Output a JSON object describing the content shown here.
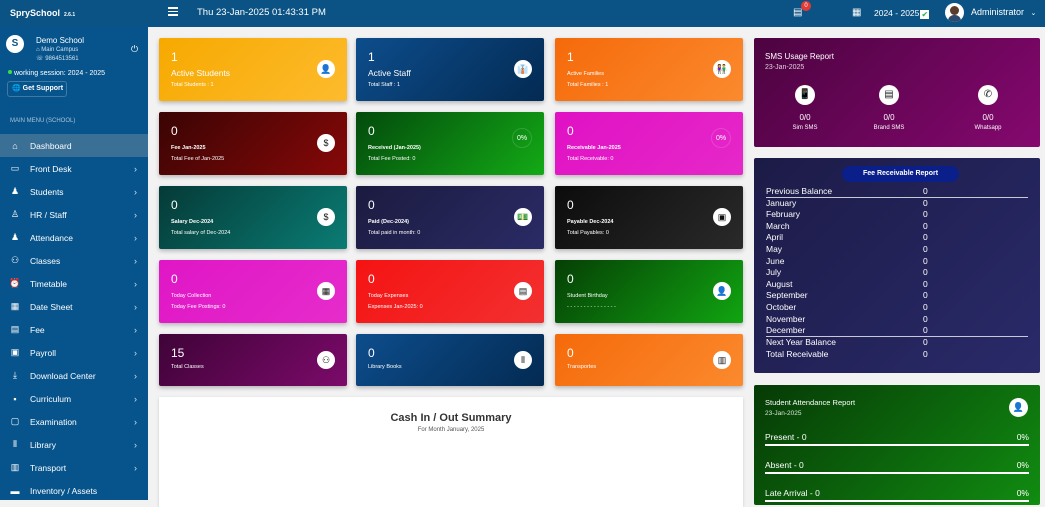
{
  "header": {
    "brand": "SprySchool",
    "version": "2.6.1",
    "datetime": "Thu 23-Jan-2025 01:43:31 PM",
    "notification_count": "0",
    "session": "2024 - 2025",
    "user": "Administrator"
  },
  "school": {
    "name": "Demo School",
    "campus": "Main Campus",
    "phone": "9864513561",
    "working_session": "working session: 2024 - 2025",
    "support": "Get Support",
    "menu_heading": "MAIN MENU (SCHOOL)"
  },
  "menu": [
    {
      "label": "Dashboard",
      "icon": "home-icon",
      "glyph": "⌂",
      "active": true,
      "chev": false
    },
    {
      "label": "Front Desk",
      "icon": "laptop-icon",
      "glyph": "▭",
      "chev": true
    },
    {
      "label": "Students",
      "icon": "students-icon",
      "glyph": "♟",
      "chev": true
    },
    {
      "label": "HR / Staff",
      "icon": "staff-icon",
      "glyph": "♙",
      "chev": true
    },
    {
      "label": "Attendance",
      "icon": "attendance-icon",
      "glyph": "♟",
      "chev": true
    },
    {
      "label": "Classes",
      "icon": "classes-icon",
      "glyph": "⚇",
      "chev": true
    },
    {
      "label": "Timetable",
      "icon": "alarm-clock-icon",
      "glyph": "⏰",
      "chev": true
    },
    {
      "label": "Date Sheet",
      "icon": "calendar-icon",
      "glyph": "▦",
      "chev": true
    },
    {
      "label": "Fee",
      "icon": "fee-icon",
      "glyph": "▤",
      "chev": true
    },
    {
      "label": "Payroll",
      "icon": "payroll-icon",
      "glyph": "▣",
      "chev": true
    },
    {
      "label": "Download Center",
      "icon": "download-icon",
      "glyph": "⤓",
      "chev": true
    },
    {
      "label": "Curriculum",
      "icon": "save-icon",
      "glyph": "▪",
      "chev": true
    },
    {
      "label": "Examination",
      "icon": "clipboard-icon",
      "glyph": "▢",
      "chev": true
    },
    {
      "label": "Library",
      "icon": "books-icon",
      "glyph": "⫴",
      "chev": true
    },
    {
      "label": "Transport",
      "icon": "bus-icon",
      "glyph": "▥",
      "chev": true
    },
    {
      "label": "Inventory / Assets",
      "icon": "briefcase-icon",
      "glyph": "▬",
      "chev": false
    }
  ],
  "cards": [
    {
      "value": "1",
      "label": "Active Students",
      "sub": "Total Students : 1",
      "icon": "user-icon",
      "glyph": "👤",
      "bg": "linear-gradient(135deg,#f6a900,#fdbb2d)"
    },
    {
      "value": "1",
      "label": "Active Staff",
      "sub": "Total Staff : 1",
      "icon": "staff-icon",
      "glyph": "👔",
      "bg": "linear-gradient(135deg,#0d4d8c,#032a52)"
    },
    {
      "value": "1",
      "label": "Active Families",
      "sub": "Total Families : 1",
      "icon": "family-icon",
      "glyph": "👫",
      "bg": "linear-gradient(135deg,#f56a0a,#fb8a2e)",
      "small": true
    },
    {
      "value": "0",
      "label": "Fee Jan-2025",
      "sub": "Total Fee of Jan-2025",
      "icon": "dollar-icon",
      "glyph": "$",
      "bg": "linear-gradient(135deg,#3a0404,#870808)",
      "small": true
    },
    {
      "value": "0",
      "label": "Received (Jan-2025)",
      "sub": "Total Fee Posted: 0",
      "percent": "0%",
      "bg": "linear-gradient(135deg,#034a0c,#13aa16)",
      "small": true
    },
    {
      "value": "0",
      "label": "Receivable Jan-2025",
      "sub": "Total Receivable: 0",
      "percent": "0%",
      "bg": "linear-gradient(135deg,#e011c4,#e628c9)",
      "small": true
    },
    {
      "value": "0",
      "label": "Salary Dec-2024",
      "sub": "Total salary of Dec-2024",
      "icon": "dollar-icon",
      "glyph": "$",
      "bg": "linear-gradient(135deg,#053a37,#0a7c74)",
      "small": true
    },
    {
      "value": "0",
      "label": "Paid (Dec-2024)",
      "sub": "Total paid in month: 0",
      "icon": "cash-icon",
      "glyph": "💵",
      "bg": "linear-gradient(135deg,#1b1b40,#2b2b66)",
      "small": true
    },
    {
      "value": "0",
      "label": "Payable Dec-2024",
      "sub": "Total Payables: 0",
      "icon": "wallet-icon",
      "glyph": "▣",
      "bg": "linear-gradient(135deg,#0c0c0c,#2a2a2a)",
      "small": true
    },
    {
      "value": "0",
      "label": "Today Collection",
      "sub": "Today Fee Postings: 0",
      "icon": "calendar-icon",
      "glyph": "▦",
      "bg": "linear-gradient(135deg,#df16c6,#e62ccb)",
      "small": true
    },
    {
      "value": "0",
      "label": "Today Expenses",
      "sub": "Expenses Jan-2025: 0",
      "icon": "receipt-icon",
      "glyph": "▤",
      "bg": "linear-gradient(135deg,#f51313,#f33030)",
      "small": true
    },
    {
      "value": "0",
      "label": "Student Birthday",
      "sub": "- - - - - - - - - - - - - - -",
      "icon": "user-icon",
      "glyph": "👤",
      "bg": "linear-gradient(135deg,#053f05,#11a511)",
      "small": true
    },
    {
      "value": "15",
      "label": "Total Classes",
      "sub": "",
      "icon": "classes-icon",
      "glyph": "⚇",
      "bg": "linear-gradient(135deg,#3f0338,#7c0a6a)",
      "small": true
    },
    {
      "value": "0",
      "label": "Library Books",
      "sub": "",
      "icon": "books-icon",
      "glyph": "⫴",
      "bg": "linear-gradient(135deg,#0d4d8c,#032a52)",
      "small": true
    },
    {
      "value": "0",
      "label": "Transportes",
      "sub": "",
      "icon": "bus-icon",
      "glyph": "▥",
      "bg": "linear-gradient(135deg,#f56a0a,#fb8a2e)",
      "small": true
    }
  ],
  "cash_summary": {
    "title": "Cash In / Out Summary",
    "subtitle": "For Month January, 2025"
  },
  "sms": {
    "title": "SMS Usage Report",
    "date": "23-Jan-2025",
    "items": [
      {
        "value": "0/0",
        "label": "Sim SMS",
        "icon": "mobile-icon",
        "glyph": "📱"
      },
      {
        "value": "0/0",
        "label": "Brand SMS",
        "icon": "id-card-icon",
        "glyph": "▤"
      },
      {
        "value": "0/0",
        "label": "Whatsapp",
        "icon": "whatsapp-icon",
        "glyph": "✆"
      }
    ]
  },
  "fee_report": {
    "title": "Fee Receivable Report",
    "rows": [
      {
        "label": "Previous Balance",
        "value": "0"
      },
      {
        "label": "January",
        "value": "0"
      },
      {
        "label": "February",
        "value": "0"
      },
      {
        "label": "March",
        "value": "0"
      },
      {
        "label": "April",
        "value": "0"
      },
      {
        "label": "May",
        "value": "0"
      },
      {
        "label": "June",
        "value": "0"
      },
      {
        "label": "July",
        "value": "0"
      },
      {
        "label": "August",
        "value": "0"
      },
      {
        "label": "September",
        "value": "0"
      },
      {
        "label": "October",
        "value": "0"
      },
      {
        "label": "November",
        "value": "0"
      },
      {
        "label": "December",
        "value": "0"
      },
      {
        "label": "Next Year Balance",
        "value": "0"
      },
      {
        "label": "Total Receivable",
        "value": "0"
      }
    ]
  },
  "attendance": {
    "title": "Student Attendance Report",
    "date": "23-Jan-2025",
    "rows": [
      {
        "label": "Present - 0",
        "percent": "0%"
      },
      {
        "label": "Absent - 0",
        "percent": "0%"
      },
      {
        "label": "Late Arrival - 0",
        "percent": "0%"
      }
    ]
  }
}
